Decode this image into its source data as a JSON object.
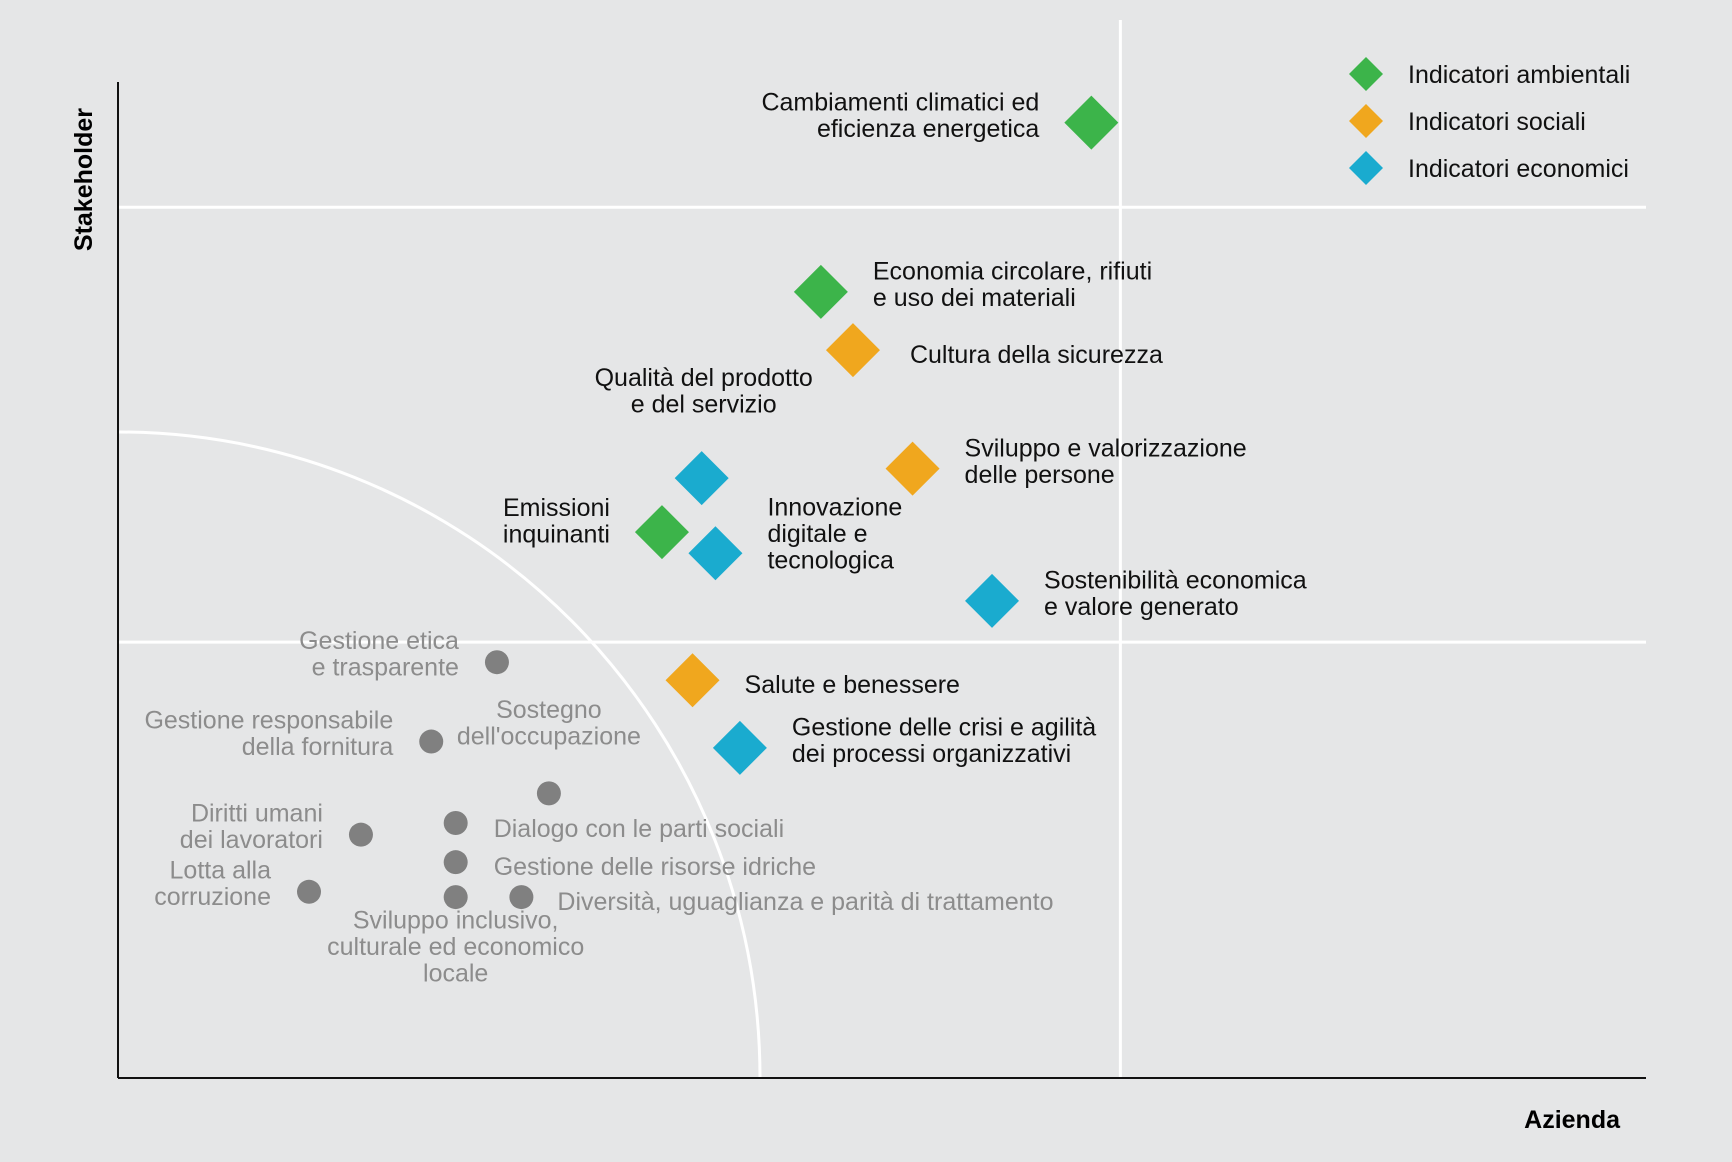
{
  "chart_data": {
    "type": "scatter",
    "title": "",
    "xlabel": "Azienda",
    "ylabel": "Stakeholder",
    "xlim": [
      0,
      100
    ],
    "ylim": [
      0,
      100
    ],
    "thresholds": {
      "x": [
        65.6
      ],
      "y": [
        41.2,
        82.3
      ]
    },
    "series": [
      {
        "name": "Indicatori ambientali",
        "key": "amb",
        "color": "#3cb44a",
        "marker": "diamond"
      },
      {
        "name": "Indicatori sociali",
        "key": "soc",
        "color": "#f0a71e",
        "marker": "diamond"
      },
      {
        "name": "Indicatori economici",
        "key": "eco",
        "color": "#1aabcf",
        "marker": "diamond"
      },
      {
        "name": "Altri temi",
        "key": "other",
        "color": "#808080",
        "marker": "circle"
      }
    ],
    "points": [
      {
        "series": "amb",
        "x": 63.7,
        "y": 90.3,
        "label": [
          "Cambiamenti climatici ed",
          "eficienza energetica"
        ]
      },
      {
        "series": "amb",
        "x": 46.0,
        "y": 74.3,
        "label": [
          "Economia circolare, rifiuti",
          "e uso dei materiali"
        ]
      },
      {
        "series": "soc",
        "x": 48.1,
        "y": 68.8,
        "label": [
          "Cultura della sicurezza"
        ]
      },
      {
        "series": "eco",
        "x": 38.2,
        "y": 56.7,
        "label": [
          "Qualità del prodotto",
          "e del servizio"
        ]
      },
      {
        "series": "soc",
        "x": 52.0,
        "y": 57.6,
        "label": [
          "Sviluppo e valorizzazione",
          "delle persone"
        ]
      },
      {
        "series": "amb",
        "x": 35.6,
        "y": 51.6,
        "label": [
          "Emissioni",
          "inquinanti"
        ]
      },
      {
        "series": "eco",
        "x": 39.1,
        "y": 49.6,
        "label": [
          "Innovazione",
          "digitale e",
          "tecnologica"
        ]
      },
      {
        "series": "eco",
        "x": 57.2,
        "y": 45.1,
        "label": [
          "Sostenibilità economica",
          "e valore generato"
        ]
      },
      {
        "series": "soc",
        "x": 37.6,
        "y": 37.6,
        "label": [
          "Salute e benessere"
        ]
      },
      {
        "series": "eco",
        "x": 40.7,
        "y": 31.2,
        "label": [
          "Gestione delle crisi e agilità",
          "dei processi organizzativi"
        ]
      },
      {
        "series": "other",
        "x": 24.8,
        "y": 39.3,
        "label": [
          "Gestione etica",
          "e trasparente"
        ]
      },
      {
        "series": "other",
        "x": 20.5,
        "y": 31.8,
        "label": [
          "Gestione responsabile",
          "della fornitura"
        ]
      },
      {
        "series": "other",
        "x": 28.2,
        "y": 26.9,
        "label": [
          "Sostegno",
          "dell'occupazione"
        ]
      },
      {
        "series": "other",
        "x": 22.1,
        "y": 24.1,
        "label": [
          "Dialogo con le parti sociali"
        ]
      },
      {
        "series": "other",
        "x": 15.9,
        "y": 23.0,
        "label": [
          "Diritti umani",
          "dei lavoratori"
        ]
      },
      {
        "series": "other",
        "x": 22.1,
        "y": 20.4,
        "label": [
          "Gestione delle risorse idriche"
        ]
      },
      {
        "series": "other",
        "x": 12.5,
        "y": 17.6,
        "label": [
          "Lotta alla",
          "corruzione"
        ]
      },
      {
        "series": "other",
        "x": 22.1,
        "y": 17.1,
        "label": [
          "Sviluppo inclusivo,",
          "culturale ed economico",
          "locale"
        ]
      },
      {
        "series": "other",
        "x": 26.4,
        "y": 17.1,
        "label": [
          "Diversità, uguaglianza e parità di trattamento"
        ]
      }
    ],
    "legend": [
      {
        "series": "amb",
        "label": "Indicatori ambientali"
      },
      {
        "series": "soc",
        "label": "Indicatori sociali"
      },
      {
        "series": "eco",
        "label": "Indicatori economici"
      }
    ],
    "legend_position": "top-right"
  }
}
